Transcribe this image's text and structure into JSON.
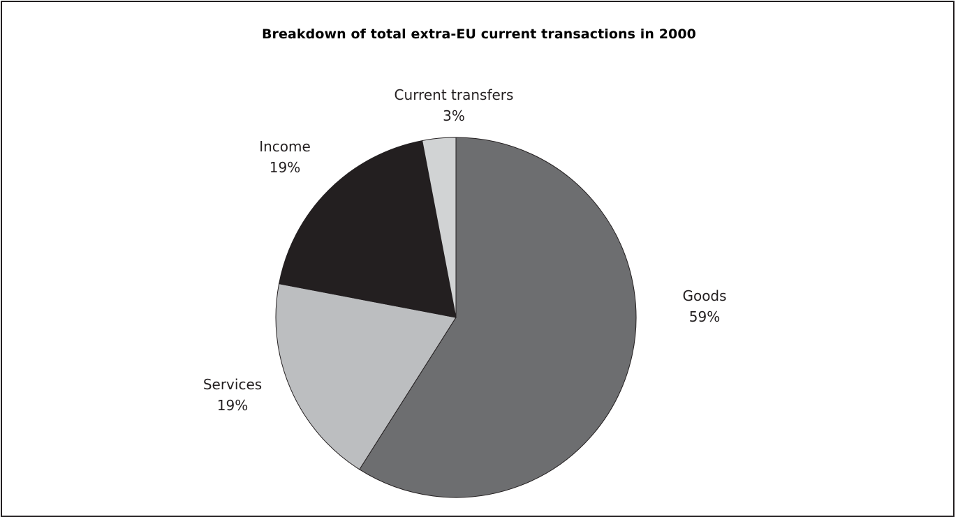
{
  "chart_data": {
    "type": "pie",
    "title": "Breakdown of total extra-EU current transactions in 2000",
    "slices": [
      {
        "name": "Goods",
        "value": 59,
        "label": "59%",
        "color": "#6d6e70"
      },
      {
        "name": "Services",
        "value": 19,
        "label": "19%",
        "color": "#bcbec0"
      },
      {
        "name": "Income",
        "value": 19,
        "label": "19%",
        "color": "#231f20"
      },
      {
        "name": "Current transfers",
        "value": 3,
        "label": "3%",
        "color": "#d1d3d4"
      }
    ],
    "start": "12 o'clock",
    "direction": "clockwise",
    "legend": "none"
  }
}
